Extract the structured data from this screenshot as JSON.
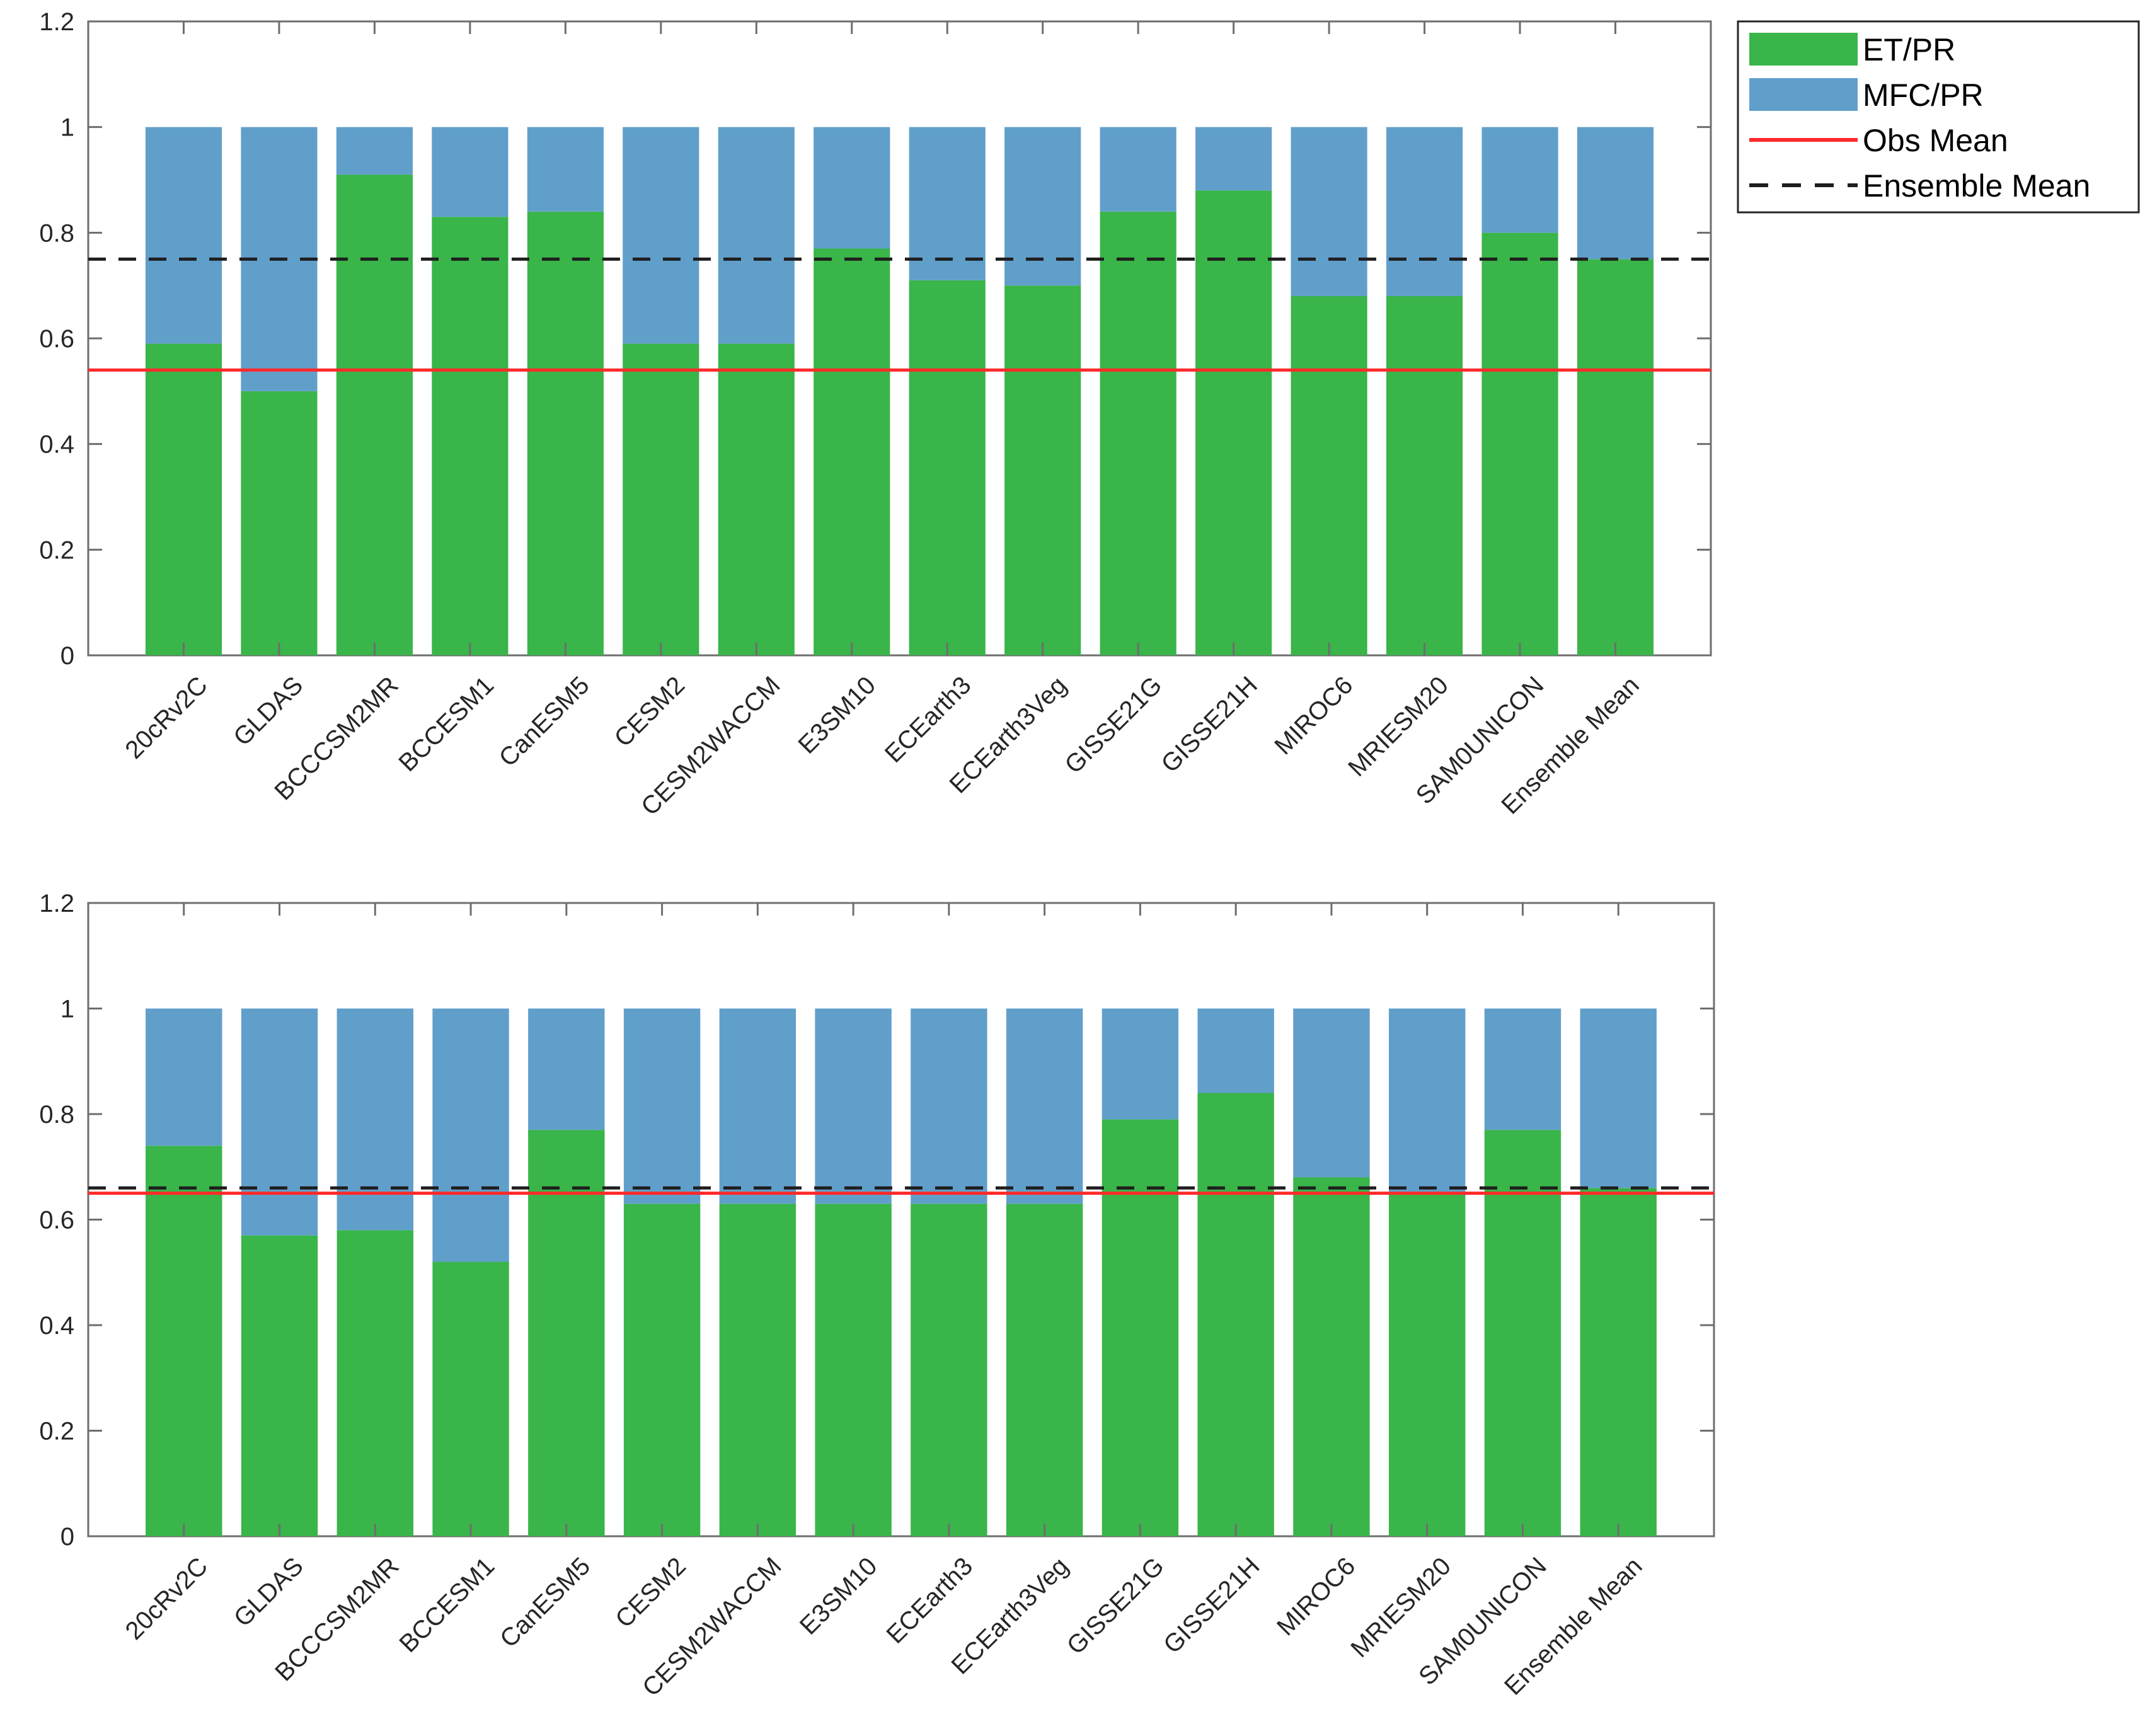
{
  "chart_data": [
    {
      "type": "bar",
      "stacked": true,
      "categories": [
        "20cRv2C",
        "GLDAS",
        "BCCCSM2MR",
        "BCCESM1",
        "CanESM5",
        "CESM2",
        "CESM2WACCM",
        "E3SM10",
        "ECEarth3",
        "ECEarth3Veg",
        "GISSE21G",
        "GISSE21H",
        "MIROC6",
        "MRIESM20",
        "SAM0UNICON",
        "Ensemble Mean"
      ],
      "series": [
        {
          "name": "ET/PR",
          "color": "#39b54a",
          "values": [
            0.59,
            0.5,
            0.91,
            0.83,
            0.84,
            0.59,
            0.59,
            0.77,
            0.71,
            0.7,
            0.84,
            0.88,
            0.68,
            0.68,
            0.8,
            0.75
          ]
        },
        {
          "name": "MFC/PR",
          "color": "#619fcb",
          "values": [
            0.41,
            0.5,
            0.09,
            0.17,
            0.16,
            0.41,
            0.41,
            0.23,
            0.29,
            0.3,
            0.16,
            0.12,
            0.32,
            0.32,
            0.2,
            0.25
          ]
        }
      ],
      "lines": [
        {
          "name": "Obs Mean",
          "value": 0.54,
          "color": "#ff2a2a",
          "style": "solid"
        },
        {
          "name": "Ensemble Mean",
          "value": 0.75,
          "color": "#1e1e1e",
          "style": "dashed"
        }
      ],
      "ylim": [
        0,
        1.2
      ],
      "yticks": [
        "0",
        "0.2",
        "0.4",
        "0.6",
        "0.8",
        "1",
        "1.2"
      ],
      "xlabel": "",
      "ylabel": "",
      "title": ""
    },
    {
      "type": "bar",
      "stacked": true,
      "categories": [
        "20cRv2C",
        "GLDAS",
        "BCCCSM2MR",
        "BCCESM1",
        "CanESM5",
        "CESM2",
        "CESM2WACCM",
        "E3SM10",
        "ECEarth3",
        "ECEarth3Veg",
        "GISSE21G",
        "GISSE21H",
        "MIROC6",
        "MRIESM20",
        "SAM0UNICON",
        "Ensemble Mean"
      ],
      "series": [
        {
          "name": "ET/PR",
          "color": "#39b54a",
          "values": [
            0.74,
            0.57,
            0.58,
            0.52,
            0.77,
            0.63,
            0.63,
            0.63,
            0.63,
            0.63,
            0.79,
            0.84,
            0.68,
            0.65,
            0.77,
            0.66
          ]
        },
        {
          "name": "MFC/PR",
          "color": "#619fcb",
          "values": [
            0.26,
            0.43,
            0.42,
            0.48,
            0.23,
            0.37,
            0.37,
            0.37,
            0.37,
            0.37,
            0.21,
            0.16,
            0.32,
            0.35,
            0.23,
            0.34
          ]
        }
      ],
      "lines": [
        {
          "name": "Obs Mean",
          "value": 0.65,
          "color": "#ff2a2a",
          "style": "solid"
        },
        {
          "name": "Ensemble Mean",
          "value": 0.66,
          "color": "#1e1e1e",
          "style": "dashed"
        }
      ],
      "ylim": [
        0,
        1.2
      ],
      "yticks": [
        "0",
        "0.2",
        "0.4",
        "0.6",
        "0.8",
        "1",
        "1.2"
      ],
      "xlabel": "",
      "ylabel": "",
      "title": ""
    }
  ],
  "legend": {
    "placement": "top-right",
    "entries": [
      {
        "label": "ET/PR",
        "kind": "patch",
        "color": "#39b54a"
      },
      {
        "label": "MFC/PR",
        "kind": "patch",
        "color": "#619fcb"
      },
      {
        "label": "Obs Mean",
        "kind": "line",
        "color": "#ff2a2a"
      },
      {
        "label": "Ensemble Mean",
        "kind": "dashed",
        "color": "#1e1e1e"
      }
    ]
  }
}
